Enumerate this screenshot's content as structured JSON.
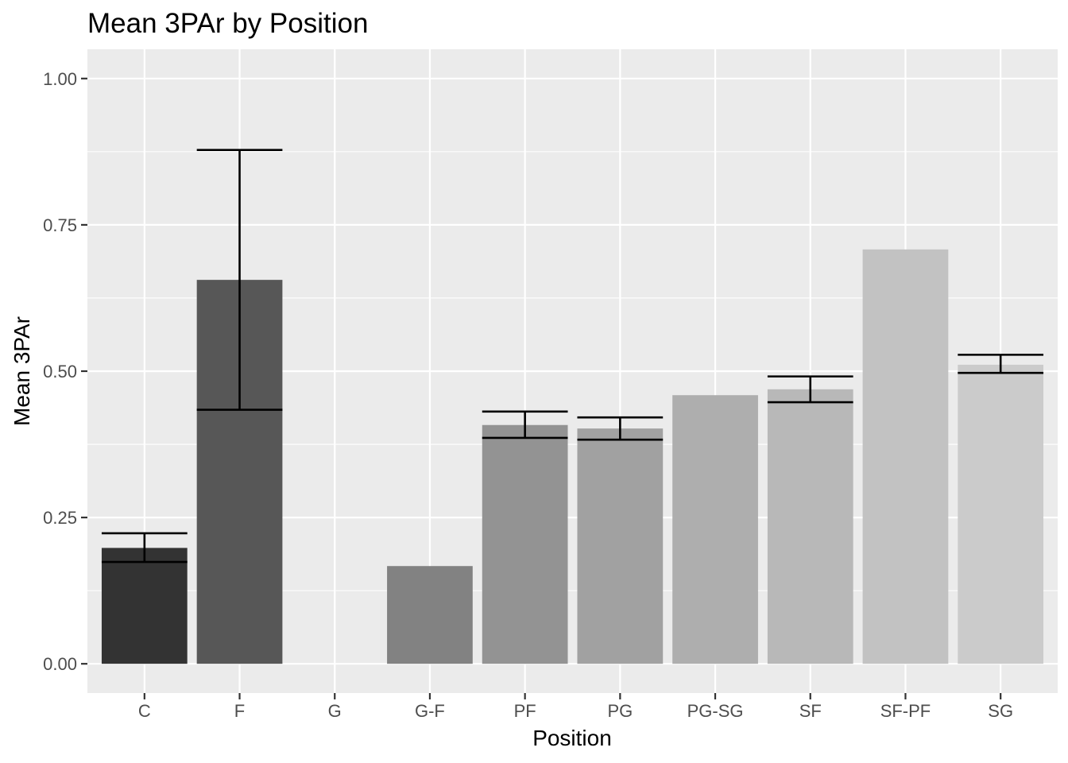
{
  "chart_data": {
    "type": "bar",
    "title": "Mean 3PAr by Position",
    "xlabel": "Position",
    "ylabel": "Mean 3PAr",
    "categories": [
      "C",
      "F",
      "G",
      "G-F",
      "PF",
      "PG",
      "PG-SG",
      "SF",
      "SF-PF",
      "SG"
    ],
    "values": [
      0.198,
      0.656,
      null,
      0.167,
      0.408,
      0.402,
      0.459,
      0.469,
      0.708,
      0.511
    ],
    "error_bars": [
      {
        "low": 0.174,
        "high": 0.223
      },
      {
        "low": 0.434,
        "high": 0.878
      },
      null,
      null,
      {
        "low": 0.386,
        "high": 0.431
      },
      {
        "low": 0.383,
        "high": 0.421
      },
      null,
      {
        "low": 0.447,
        "high": 0.491
      },
      null,
      {
        "low": 0.497,
        "high": 0.528
      }
    ],
    "bar_colors": [
      "#333333",
      "#575757",
      "#707070",
      "#828282",
      "#939393",
      "#a1a1a1",
      "#aeaeae",
      "#b8b8b8",
      "#c2c2c2",
      "#cbcbcb"
    ],
    "ylim": [
      -0.05,
      1.05
    ],
    "yticks": [
      0.0,
      0.25,
      0.5,
      0.75,
      1.0
    ],
    "ytick_labels": [
      "0.00",
      "0.25",
      "0.50",
      "0.75",
      "1.00"
    ],
    "grid": true,
    "panel_background": "#ebebeb",
    "grid_color": "#ffffff",
    "error_bar_color": "#000000"
  }
}
